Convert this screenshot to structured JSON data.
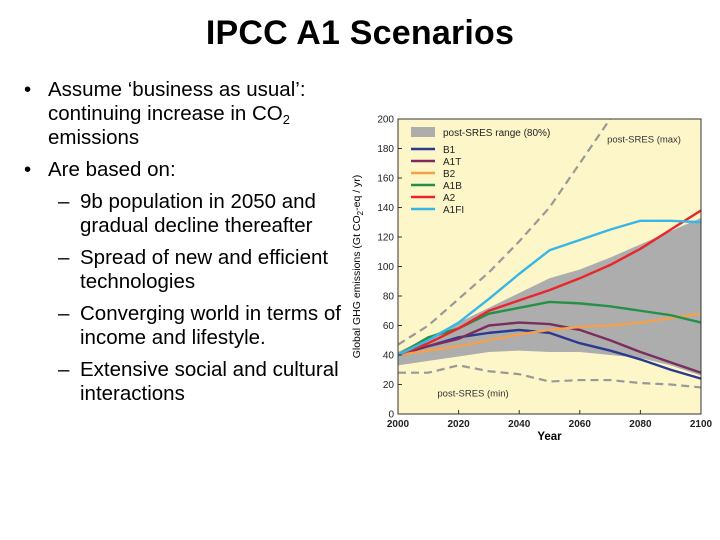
{
  "slide": {
    "title": "IPCC A1 Scenarios",
    "bullets": [
      {
        "level": 1,
        "text": "Assume ‘business as usual’: continuing increase in CO",
        "sub": "2",
        "after": " emissions"
      },
      {
        "level": 1,
        "text": "Are based on:"
      },
      {
        "level": 2,
        "text": "9b population in 2050 and gradual decline thereafter"
      },
      {
        "level": 2,
        "text": "Spread of new and efficient technologies"
      },
      {
        "level": 2,
        "text": "Converging world in terms of income and lifestyle."
      },
      {
        "level": 2,
        "text": "Extensive social and cultural interactions"
      }
    ]
  },
  "colors": {
    "plot_background": "#fdf6c8",
    "band": "#adadad",
    "B1": "#2b3990",
    "A1T": "#7b2d5c",
    "B2": "#f5a04a",
    "A1B": "#259148",
    "A2": "#e8262b",
    "A1FI": "#36b7e8",
    "dashed": "#999999"
  },
  "chart_data": {
    "type": "line",
    "xlabel": "Year",
    "ylabel_parts": [
      "Global GHG emissions (Gt CO",
      "2",
      "-eq / yr)"
    ],
    "xlim": [
      2000,
      2100
    ],
    "ylim": [
      0,
      200
    ],
    "xticks": [
      2000,
      2020,
      2040,
      2060,
      2080,
      2100
    ],
    "yticks": [
      0,
      20,
      40,
      60,
      80,
      100,
      120,
      140,
      160,
      180,
      200
    ],
    "legend_position": "top-left",
    "band": {
      "name": "post-SRES range (80%)",
      "x": [
        2000,
        2010,
        2020,
        2030,
        2040,
        2050,
        2060,
        2070,
        2080,
        2090,
        2100
      ],
      "upper": [
        42,
        52,
        62,
        72,
        82,
        92,
        98,
        106,
        115,
        124,
        133
      ],
      "lower": [
        33,
        36,
        39,
        42,
        43,
        42,
        42,
        40,
        38,
        33,
        26
      ]
    },
    "series": [
      {
        "name": "B1",
        "color_key": "B1",
        "x": [
          2000,
          2010,
          2020,
          2030,
          2040,
          2050,
          2060,
          2070,
          2080,
          2090,
          2100
        ],
        "y": [
          40,
          46,
          52,
          55,
          57,
          55,
          48,
          43,
          37,
          30,
          24
        ]
      },
      {
        "name": "A1T",
        "color_key": "A1T",
        "x": [
          2000,
          2010,
          2020,
          2030,
          2040,
          2050,
          2060,
          2070,
          2080,
          2090,
          2100
        ],
        "y": [
          40,
          46,
          51,
          60,
          62,
          61,
          57,
          50,
          42,
          35,
          28
        ]
      },
      {
        "name": "B2",
        "color_key": "B2",
        "x": [
          2000,
          2010,
          2020,
          2030,
          2040,
          2050,
          2060,
          2070,
          2080,
          2090,
          2100
        ],
        "y": [
          40,
          43,
          46,
          50,
          54,
          57,
          59,
          60,
          62,
          65,
          68
        ]
      },
      {
        "name": "A1B",
        "color_key": "A1B",
        "x": [
          2000,
          2010,
          2020,
          2030,
          2040,
          2050,
          2060,
          2070,
          2080,
          2090,
          2100
        ],
        "y": [
          40,
          52,
          58,
          68,
          72,
          76,
          75,
          73,
          70,
          67,
          62
        ]
      },
      {
        "name": "A2",
        "color_key": "A2",
        "x": [
          2000,
          2010,
          2020,
          2030,
          2040,
          2050,
          2060,
          2070,
          2080,
          2090,
          2100
        ],
        "y": [
          40,
          48,
          58,
          70,
          77,
          84,
          92,
          101,
          112,
          125,
          138
        ]
      },
      {
        "name": "A1FI",
        "color_key": "A1FI",
        "x": [
          2000,
          2010,
          2020,
          2030,
          2040,
          2050,
          2060,
          2070,
          2080,
          2090,
          2100
        ],
        "y": [
          40,
          50,
          62,
          78,
          95,
          111,
          118,
          125,
          131,
          131,
          130
        ]
      }
    ],
    "dashed_lines": [
      {
        "label": "post-SRES (max)",
        "x": [
          2000,
          2010,
          2020,
          2030,
          2040,
          2050,
          2060,
          2070
        ],
        "y": [
          47,
          60,
          78,
          96,
          117,
          140,
          170,
          200
        ]
      },
      {
        "label": "post-SRES (min)",
        "x": [
          2000,
          2010,
          2020,
          2030,
          2040,
          2050,
          2060,
          2070,
          2080,
          2090,
          2100
        ],
        "y": [
          28,
          28,
          33,
          29,
          27,
          22,
          23,
          23,
          21,
          20,
          18
        ]
      }
    ]
  }
}
